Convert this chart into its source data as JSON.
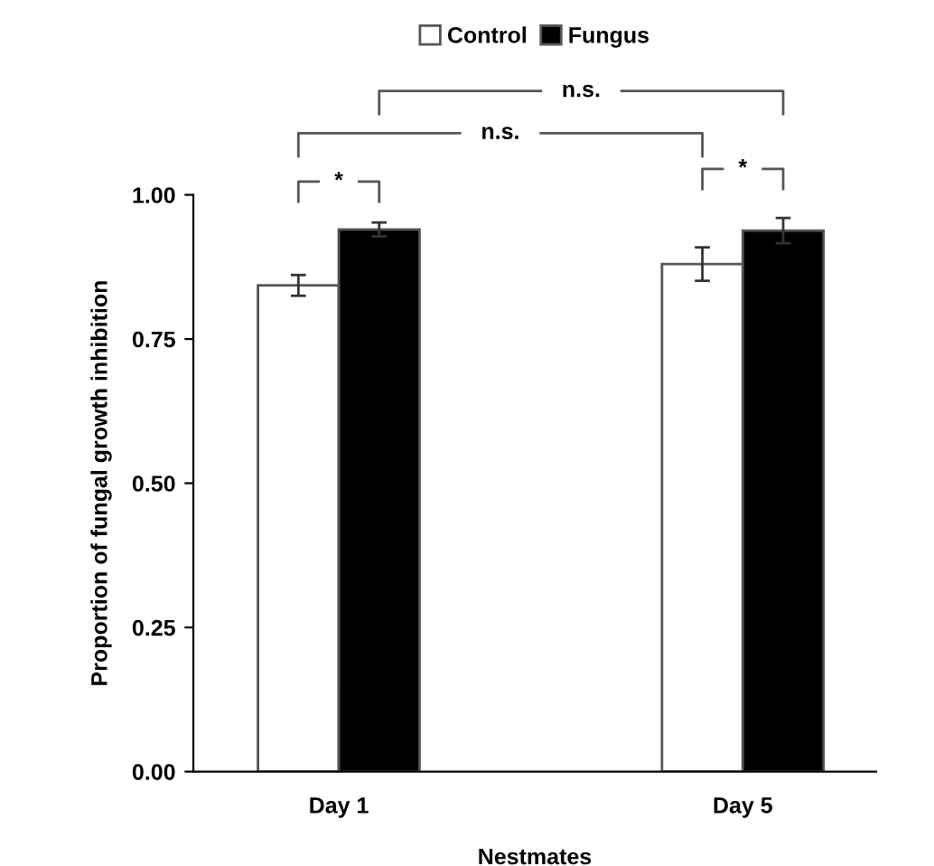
{
  "chart_data": {
    "type": "bar",
    "xlabel": "Nestmates",
    "ylabel": "Proportion of fungal growth inhibition",
    "categories": [
      "Day 1",
      "Day 5"
    ],
    "series": [
      {
        "name": "Control",
        "color": "#ffffff",
        "values": [
          0.843,
          0.88
        ],
        "errors": [
          0.018,
          0.029
        ]
      },
      {
        "name": "Fungus",
        "color": "#000000",
        "values": [
          0.94,
          0.938
        ],
        "errors": [
          0.012,
          0.022
        ]
      }
    ],
    "ylim": [
      0,
      1.0
    ],
    "yticks": [
      {
        "value": 0,
        "label": "0.00"
      },
      {
        "value": 0.25,
        "label": "0.25"
      },
      {
        "value": 0.5,
        "label": "0.50"
      },
      {
        "value": 0.75,
        "label": "0.75"
      },
      {
        "value": 1.0,
        "label": "1.00"
      }
    ],
    "grid": false,
    "legend": "top",
    "annotations": [
      "*",
      "*",
      "n.s.",
      "n.s."
    ]
  }
}
